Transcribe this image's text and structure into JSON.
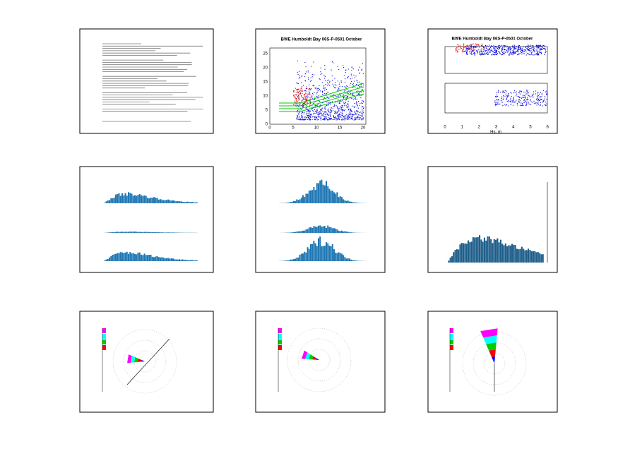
{
  "thumbnails": [
    {
      "title": "BWE Humboldt Bay 06S-P-0501 October",
      "yticks": [
        "0",
        "5",
        "10",
        "15",
        "20",
        "25"
      ],
      "xticks": [
        "0",
        "5",
        "10",
        "15",
        "20"
      ]
    },
    {
      "title": "BWE Humboldt Bay 06S-P-0501 October",
      "xticks": [
        "0",
        "1",
        "2",
        "3",
        "4",
        "5",
        "6"
      ],
      "xlabel": "Hs, m"
    }
  ]
}
